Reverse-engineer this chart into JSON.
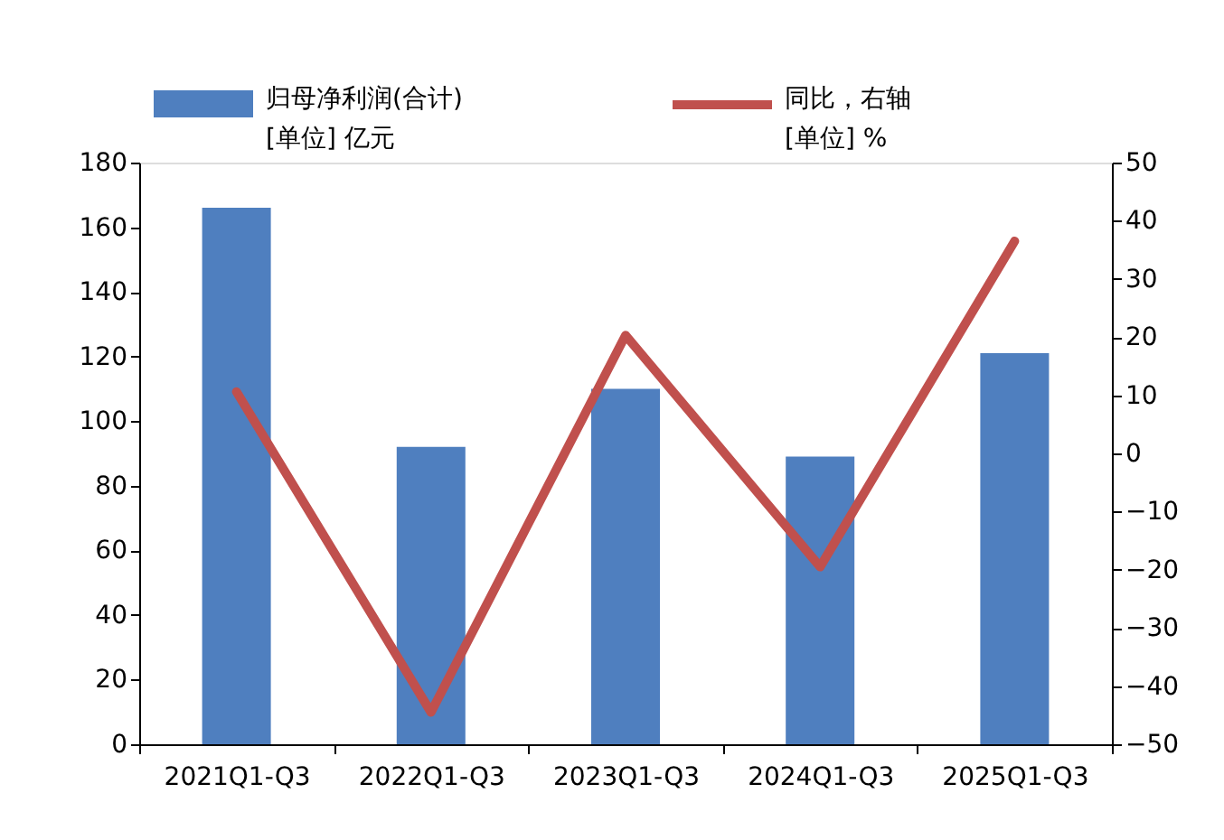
{
  "chart_data": {
    "type": "bar",
    "categories": [
      "2021Q1-Q3",
      "2022Q1-Q3",
      "2023Q1-Q3",
      "2024Q1-Q3",
      "2025Q1-Q3"
    ],
    "series": [
      {
        "name": "归母净利润(合计)\n[单位] 亿元",
        "color": "#4f7fbf",
        "values": [
          166,
          92,
          110,
          89,
          121
        ]
      },
      {
        "name": "同比，右轴\n[单位] %",
        "type": "line",
        "axis": "y2",
        "color": "#c0504d",
        "values": [
          10.6,
          -44.5,
          20.3,
          -19.5,
          36.5
        ]
      }
    ],
    "ylim": [
      0,
      180
    ],
    "yticks": [
      0,
      20,
      40,
      60,
      80,
      100,
      120,
      140,
      160,
      180
    ],
    "y2lim": [
      -50,
      50
    ],
    "y2ticks": [
      -50,
      -40,
      -30,
      -20,
      -10,
      0,
      10,
      20,
      30,
      40,
      50
    ],
    "grid": false,
    "legend": "top"
  }
}
